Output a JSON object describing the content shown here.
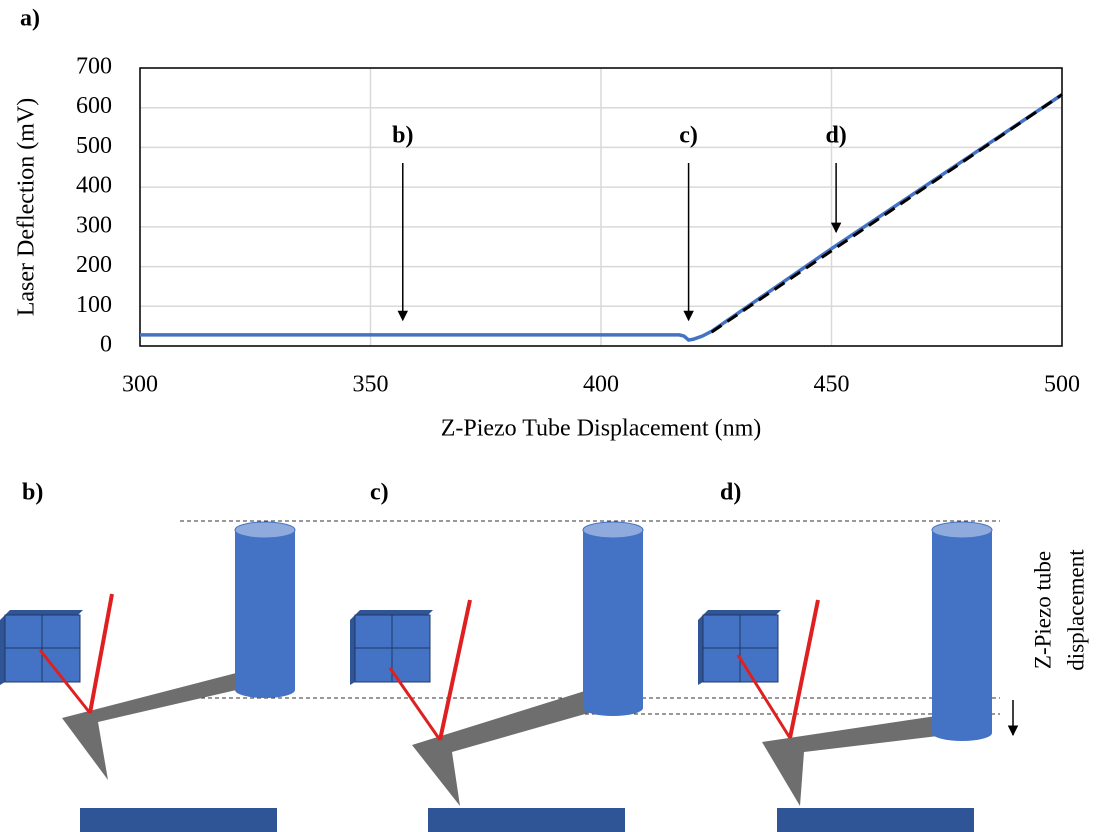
{
  "figure_label": "a)",
  "chart_data": {
    "type": "line",
    "xlabel": "Z-Piezo Tube Displacement (nm)",
    "ylabel": "Laser Deflection (mV)",
    "xlim": [
      300,
      500
    ],
    "xticks": [
      300,
      350,
      400,
      450,
      500
    ],
    "ylim": [
      0,
      700
    ],
    "yticks": [
      0,
      100,
      200,
      300,
      400,
      500,
      600,
      700
    ],
    "grid": true,
    "series": [
      {
        "color": "#4472c4",
        "dash": false,
        "x": [
          300,
          417,
          418,
          419,
          420,
          422,
          424,
          450,
          500
        ],
        "values": [
          28,
          28,
          25,
          15,
          17,
          25,
          37,
          245,
          633
        ]
      },
      {
        "color": "#000000",
        "dash": true,
        "x": [
          424,
          500
        ],
        "values": [
          35,
          633
        ]
      }
    ],
    "annotations": [
      {
        "text": "b)",
        "x": 357,
        "y": 65
      },
      {
        "text": "c)",
        "x": 419,
        "y": 65
      },
      {
        "text": "d)",
        "x": 451,
        "y": 287
      }
    ]
  },
  "diagram": {
    "panels": [
      "b)",
      "c)",
      "d)"
    ],
    "side_label": [
      "Z-Piezo tube",
      "displacement"
    ]
  }
}
